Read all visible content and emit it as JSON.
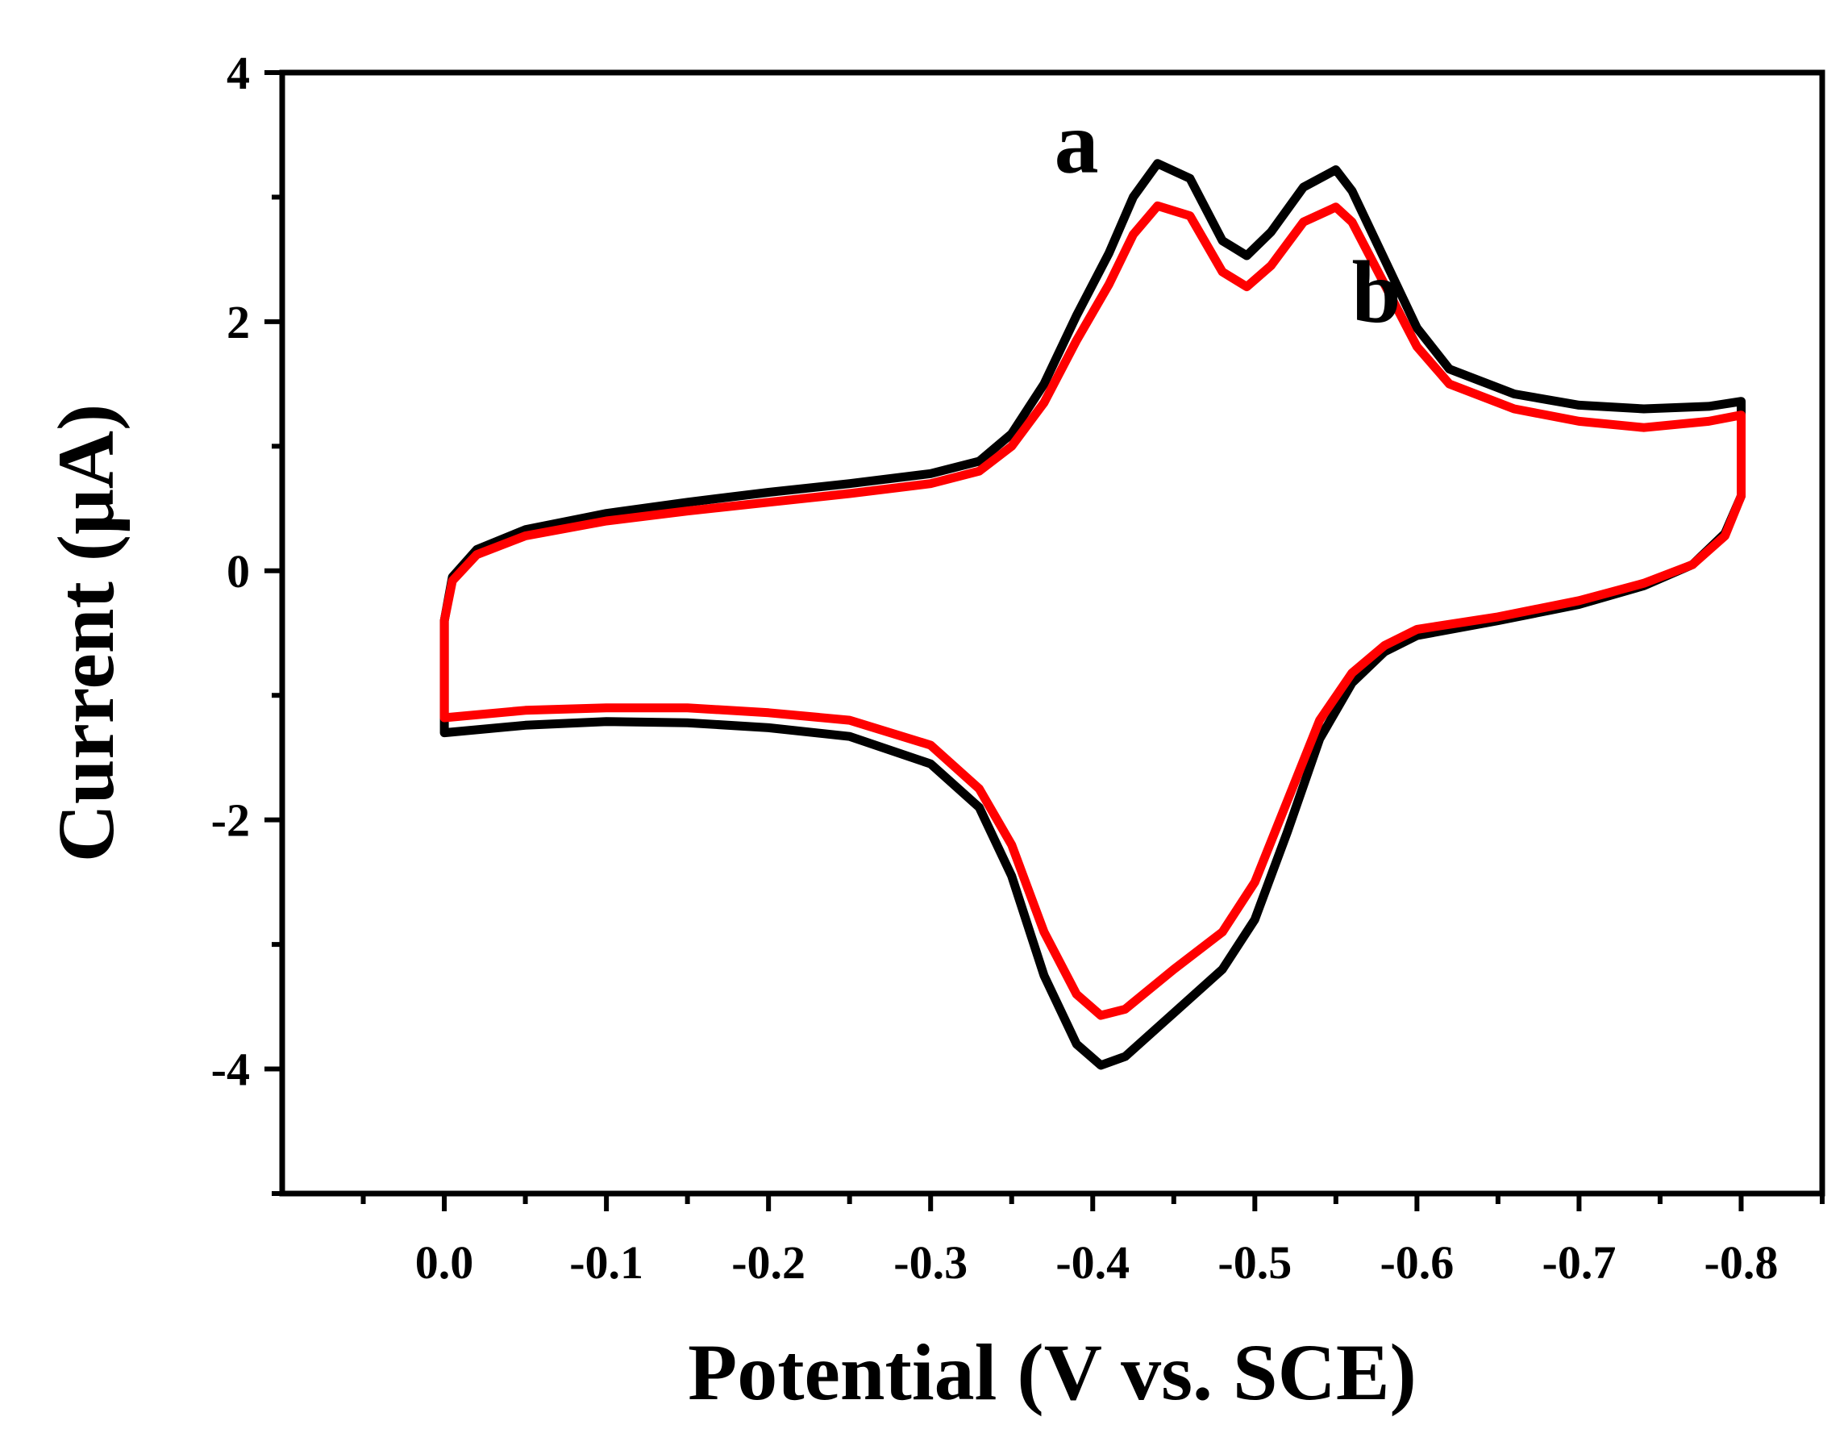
{
  "chart_data": {
    "type": "line",
    "title": "",
    "xlabel": "Potential (V vs. SCE)",
    "ylabel": "Current (μA)",
    "xlim": [
      0.1,
      -0.85
    ],
    "ylim": [
      -5,
      4
    ],
    "xticks": [
      0.0,
      -0.1,
      -0.2,
      -0.3,
      -0.4,
      -0.5,
      -0.6,
      -0.7,
      -0.8
    ],
    "xtick_labels": [
      "0.0",
      "-0.1",
      "-0.2",
      "-0.3",
      "-0.4",
      "-0.5",
      "-0.6",
      "-0.7",
      "-0.8"
    ],
    "yticks": [
      4,
      2,
      0,
      -2,
      -4
    ],
    "ytick_labels": [
      "4",
      "2",
      "0",
      "-2",
      "-4"
    ],
    "grid": false,
    "series": [
      {
        "name": "a",
        "color": "#000000",
        "forward": [
          [
            0,
            -1.3
          ],
          [
            -0.05,
            -1.24
          ],
          [
            -0.1,
            -1.21
          ],
          [
            -0.15,
            -1.22
          ],
          [
            -0.2,
            -1.26
          ],
          [
            -0.25,
            -1.33
          ],
          [
            -0.3,
            -1.55
          ],
          [
            -0.33,
            -1.9
          ],
          [
            -0.35,
            -2.45
          ],
          [
            -0.37,
            -3.25
          ],
          [
            -0.39,
            -3.8
          ],
          [
            -0.405,
            -3.97
          ],
          [
            -0.42,
            -3.9
          ],
          [
            -0.45,
            -3.55
          ],
          [
            -0.48,
            -3.2
          ],
          [
            -0.5,
            -2.8
          ],
          [
            -0.52,
            -2.1
          ],
          [
            -0.54,
            -1.35
          ],
          [
            -0.56,
            -0.9
          ],
          [
            -0.58,
            -0.65
          ],
          [
            -0.6,
            -0.52
          ],
          [
            -0.65,
            -0.4
          ],
          [
            -0.7,
            -0.27
          ],
          [
            -0.74,
            -0.12
          ],
          [
            -0.77,
            0.05
          ],
          [
            -0.79,
            0.3
          ],
          [
            -0.8,
            0.6
          ],
          [
            -0.8,
            1.36
          ]
        ],
        "reverse": [
          [
            -0.8,
            1.36
          ],
          [
            -0.78,
            1.32
          ],
          [
            -0.74,
            1.3
          ],
          [
            -0.7,
            1.33
          ],
          [
            -0.66,
            1.42
          ],
          [
            -0.62,
            1.62
          ],
          [
            -0.6,
            1.95
          ],
          [
            -0.58,
            2.5
          ],
          [
            -0.56,
            3.05
          ],
          [
            -0.55,
            3.22
          ],
          [
            -0.53,
            3.08
          ],
          [
            -0.51,
            2.72
          ],
          [
            -0.495,
            2.53
          ],
          [
            -0.48,
            2.65
          ],
          [
            -0.46,
            3.15
          ],
          [
            -0.44,
            3.27
          ],
          [
            -0.425,
            3.0
          ],
          [
            -0.41,
            2.55
          ],
          [
            -0.39,
            2.05
          ],
          [
            -0.37,
            1.5
          ],
          [
            -0.35,
            1.1
          ],
          [
            -0.33,
            0.88
          ],
          [
            -0.3,
            0.78
          ],
          [
            -0.25,
            0.7
          ],
          [
            -0.2,
            0.63
          ],
          [
            -0.15,
            0.55
          ],
          [
            -0.1,
            0.46
          ],
          [
            -0.05,
            0.33
          ],
          [
            -0.02,
            0.17
          ],
          [
            -0.005,
            -0.05
          ],
          [
            0,
            -0.4
          ],
          [
            0,
            -1.3
          ]
        ]
      },
      {
        "name": "b",
        "color": "#ff0000",
        "forward": [
          [
            0,
            -1.18
          ],
          [
            -0.05,
            -1.12
          ],
          [
            -0.1,
            -1.1
          ],
          [
            -0.15,
            -1.1
          ],
          [
            -0.2,
            -1.14
          ],
          [
            -0.25,
            -1.2
          ],
          [
            -0.3,
            -1.4
          ],
          [
            -0.33,
            -1.75
          ],
          [
            -0.35,
            -2.2
          ],
          [
            -0.37,
            -2.9
          ],
          [
            -0.39,
            -3.4
          ],
          [
            -0.405,
            -3.57
          ],
          [
            -0.42,
            -3.52
          ],
          [
            -0.45,
            -3.2
          ],
          [
            -0.48,
            -2.9
          ],
          [
            -0.5,
            -2.5
          ],
          [
            -0.52,
            -1.85
          ],
          [
            -0.54,
            -1.2
          ],
          [
            -0.56,
            -0.82
          ],
          [
            -0.58,
            -0.6
          ],
          [
            -0.6,
            -0.47
          ],
          [
            -0.65,
            -0.37
          ],
          [
            -0.7,
            -0.24
          ],
          [
            -0.74,
            -0.1
          ],
          [
            -0.77,
            0.05
          ],
          [
            -0.79,
            0.28
          ],
          [
            -0.8,
            0.6
          ],
          [
            -0.8,
            1.25
          ]
        ],
        "reverse": [
          [
            -0.8,
            1.25
          ],
          [
            -0.78,
            1.2
          ],
          [
            -0.74,
            1.15
          ],
          [
            -0.7,
            1.2
          ],
          [
            -0.66,
            1.3
          ],
          [
            -0.62,
            1.5
          ],
          [
            -0.6,
            1.8
          ],
          [
            -0.58,
            2.3
          ],
          [
            -0.56,
            2.8
          ],
          [
            -0.55,
            2.92
          ],
          [
            -0.53,
            2.8
          ],
          [
            -0.51,
            2.45
          ],
          [
            -0.495,
            2.28
          ],
          [
            -0.48,
            2.4
          ],
          [
            -0.46,
            2.85
          ],
          [
            -0.44,
            2.93
          ],
          [
            -0.425,
            2.7
          ],
          [
            -0.41,
            2.3
          ],
          [
            -0.39,
            1.85
          ],
          [
            -0.37,
            1.35
          ],
          [
            -0.35,
            1.0
          ],
          [
            -0.33,
            0.8
          ],
          [
            -0.3,
            0.7
          ],
          [
            -0.25,
            0.62
          ],
          [
            -0.2,
            0.55
          ],
          [
            -0.15,
            0.48
          ],
          [
            -0.1,
            0.4
          ],
          [
            -0.05,
            0.28
          ],
          [
            -0.02,
            0.13
          ],
          [
            -0.005,
            -0.08
          ],
          [
            0,
            -0.4
          ],
          [
            0,
            -1.18
          ]
        ]
      }
    ],
    "annotations": [
      {
        "text": "a",
        "x": -0.39,
        "y": 3.2
      },
      {
        "text": "b",
        "x": -0.575,
        "y": 2.0
      }
    ]
  }
}
